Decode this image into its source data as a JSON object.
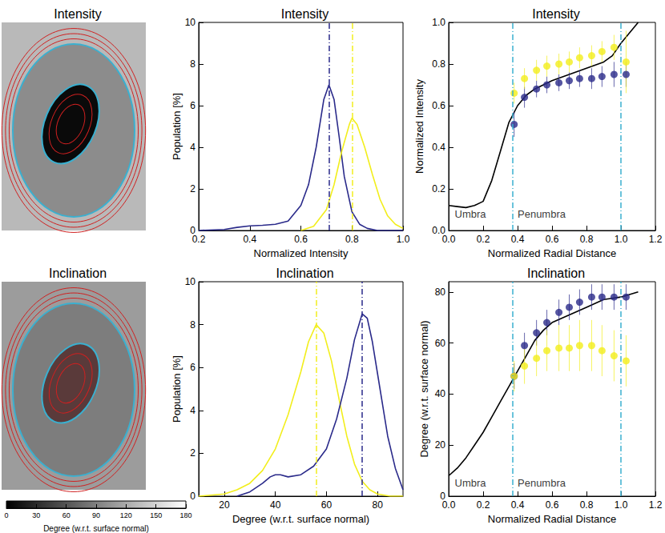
{
  "chart_data": [
    {
      "type": "image",
      "title": "Intensity"
    },
    {
      "type": "line",
      "title": "Intensity",
      "x_label": "Normalized Intensity",
      "y_label": "Population [%]",
      "xlim": [
        0.2,
        1.0
      ],
      "ylim": [
        0,
        10
      ],
      "xticks": [
        0.2,
        0.4,
        0.6,
        0.8,
        {
          "value": 1,
          "label": "1.0"
        }
      ],
      "yticks": [
        0,
        2,
        4,
        6,
        8,
        10
      ],
      "series": [
        {
          "color": "#2a2a8a",
          "values": [
            [
              0.2,
              0
            ],
            [
              0.3,
              0.05
            ],
            [
              0.35,
              0.15
            ],
            [
              0.4,
              0.22
            ],
            [
              0.45,
              0.25
            ],
            [
              0.5,
              0.3
            ],
            [
              0.55,
              0.45
            ],
            [
              0.6,
              1.2
            ],
            [
              0.63,
              2.2
            ],
            [
              0.66,
              4.0
            ],
            [
              0.69,
              6.3
            ],
            [
              0.71,
              7.0
            ],
            [
              0.73,
              6.3
            ],
            [
              0.75,
              4.5
            ],
            [
              0.77,
              2.6
            ],
            [
              0.8,
              0.9
            ],
            [
              0.83,
              0.3
            ],
            [
              0.86,
              0.1
            ],
            [
              0.9,
              0
            ],
            [
              1.0,
              0
            ]
          ]
        },
        {
          "color": "#f2ee1c",
          "values": [
            [
              0.6,
              0
            ],
            [
              0.65,
              0.2
            ],
            [
              0.7,
              1.0
            ],
            [
              0.73,
              2.2
            ],
            [
              0.76,
              3.8
            ],
            [
              0.79,
              5.1
            ],
            [
              0.8,
              5.4
            ],
            [
              0.82,
              5.1
            ],
            [
              0.85,
              4.0
            ],
            [
              0.88,
              2.7
            ],
            [
              0.91,
              1.5
            ],
            [
              0.94,
              0.7
            ],
            [
              0.97,
              0.3
            ],
            [
              1.0,
              0.1
            ]
          ]
        }
      ],
      "vlines": [
        {
          "x": 0.71,
          "color": "#2a2a8a"
        },
        {
          "x": 0.8,
          "color": "#f2ee1c"
        }
      ]
    },
    {
      "type": "scatter",
      "title": "Intensity",
      "x_label": "Normalized Radial Distance",
      "y_label": "Normalized Intensity",
      "xlim": [
        0,
        1.2
      ],
      "ylim": [
        0,
        1.0
      ],
      "xticks": [
        {
          "value": 0,
          "label": "0.0"
        },
        0.2,
        0.4,
        0.6,
        0.8,
        {
          "value": 1,
          "label": "1.0"
        },
        1.2
      ],
      "yticks": [
        {
          "value": 0,
          "label": "0.0"
        },
        0.2,
        0.4,
        0.6,
        0.8,
        {
          "value": 1,
          "label": "1.0"
        }
      ],
      "series": [
        {
          "type": "line",
          "color": "#000000",
          "values": [
            [
              0,
              0.12
            ],
            [
              0.05,
              0.115
            ],
            [
              0.1,
              0.11
            ],
            [
              0.15,
              0.12
            ],
            [
              0.2,
              0.14
            ],
            [
              0.25,
              0.24
            ],
            [
              0.3,
              0.38
            ],
            [
              0.35,
              0.52
            ],
            [
              0.4,
              0.6
            ],
            [
              0.45,
              0.65
            ],
            [
              0.5,
              0.68
            ],
            [
              0.6,
              0.72
            ],
            [
              0.7,
              0.75
            ],
            [
              0.8,
              0.78
            ],
            [
              0.9,
              0.81
            ],
            [
              0.95,
              0.84
            ],
            [
              1.0,
              0.9
            ],
            [
              1.05,
              0.95
            ],
            [
              1.1,
              1.0
            ]
          ]
        },
        {
          "type": "scatter",
          "marker": "circle",
          "color": "#2a2a8a",
          "values": [
            [
              0.38,
              0.51
            ],
            [
              0.44,
              0.64
            ],
            [
              0.51,
              0.68
            ],
            [
              0.57,
              0.7
            ],
            [
              0.64,
              0.71
            ],
            [
              0.7,
              0.72
            ],
            [
              0.76,
              0.73
            ],
            [
              0.83,
              0.73
            ],
            [
              0.89,
              0.74
            ],
            [
              0.96,
              0.75
            ],
            [
              1.03,
              0.75
            ]
          ],
          "errors": [
            0.06,
            0.05,
            0.04,
            0.04,
            0.04,
            0.04,
            0.04,
            0.05,
            0.05,
            0.06,
            0.06
          ]
        },
        {
          "type": "scatter",
          "marker": "circle",
          "color": "#f2ee1c",
          "values": [
            [
              0.38,
              0.66
            ],
            [
              0.44,
              0.73
            ],
            [
              0.51,
              0.77
            ],
            [
              0.57,
              0.79
            ],
            [
              0.64,
              0.8
            ],
            [
              0.7,
              0.81
            ],
            [
              0.76,
              0.83
            ],
            [
              0.83,
              0.84
            ],
            [
              0.89,
              0.86
            ],
            [
              0.96,
              0.88
            ],
            [
              1.03,
              0.81
            ]
          ],
          "errors": [
            0.05,
            0.05,
            0.05,
            0.05,
            0.05,
            0.05,
            0.05,
            0.05,
            0.05,
            0.06,
            0.15
          ]
        }
      ],
      "vlines": [
        {
          "x": 0.37,
          "color": "#3ab0d0"
        },
        {
          "x": 1.0,
          "color": "#3ab0d0"
        }
      ],
      "annotations": [
        {
          "text": "Umbra",
          "x": 0.035,
          "y": 0.077
        },
        {
          "text": "Penumbra",
          "x": 0.4,
          "y": 0.077
        }
      ]
    },
    {
      "type": "image",
      "title": "Inclination",
      "colorbar": {
        "range": [
          0,
          180
        ],
        "ticks": [
          0,
          30,
          60,
          90,
          120,
          150,
          180
        ],
        "label": "Degree (w.r.t. surface normal)"
      }
    },
    {
      "type": "line",
      "title": "Inclination",
      "x_label": "Degree (w.r.t. surface normal)",
      "y_label": "Population [%]",
      "xlim": [
        10,
        90
      ],
      "ylim": [
        0,
        10
      ],
      "xticks": [
        20,
        40,
        60,
        80
      ],
      "yticks": [
        0,
        2,
        4,
        6,
        8,
        10
      ],
      "series": [
        {
          "color": "#f2ee1c",
          "values": [
            [
              10,
              0
            ],
            [
              20,
              0.1
            ],
            [
              25,
              0.3
            ],
            [
              30,
              0.6
            ],
            [
              35,
              1.2
            ],
            [
              40,
              2.2
            ],
            [
              45,
              3.8
            ],
            [
              50,
              5.8
            ],
            [
              53,
              7.2
            ],
            [
              56,
              8.0
            ],
            [
              59,
              7.6
            ],
            [
              62,
              6.3
            ],
            [
              65,
              4.5
            ],
            [
              68,
              2.8
            ],
            [
              71,
              1.5
            ],
            [
              74,
              0.7
            ],
            [
              77,
              0.3
            ],
            [
              80,
              0.1
            ],
            [
              85,
              0
            ],
            [
              90,
              0
            ]
          ]
        },
        {
          "color": "#2a2a8a",
          "values": [
            [
              25,
              0
            ],
            [
              30,
              0.2
            ],
            [
              35,
              0.6
            ],
            [
              38,
              0.9
            ],
            [
              40,
              1.0
            ],
            [
              42,
              1.0
            ],
            [
              45,
              0.9
            ],
            [
              50,
              1.0
            ],
            [
              55,
              1.4
            ],
            [
              60,
              2.2
            ],
            [
              64,
              3.6
            ],
            [
              68,
              5.5
            ],
            [
              71,
              7.3
            ],
            [
              74,
              8.5
            ],
            [
              76,
              8.3
            ],
            [
              78,
              7.2
            ],
            [
              81,
              5.0
            ],
            [
              84,
              2.8
            ],
            [
              87,
              1.3
            ],
            [
              90,
              0.3
            ]
          ]
        }
      ],
      "vlines": [
        {
          "x": 56,
          "color": "#f2ee1c"
        },
        {
          "x": 74,
          "color": "#2a2a8a"
        }
      ]
    },
    {
      "type": "scatter",
      "title": "Inclination",
      "x_label": "Normalized Radial Distance",
      "y_label": "Degree (w.r.t. surface normal)",
      "xlim": [
        0,
        1.2
      ],
      "ylim": [
        0,
        84
      ],
      "xticks": [
        {
          "value": 0,
          "label": "0.0"
        },
        0.2,
        0.4,
        0.6,
        0.8,
        {
          "value": 1,
          "label": "1.0"
        },
        1.2
      ],
      "yticks": [
        0,
        20,
        40,
        60,
        80
      ],
      "series": [
        {
          "type": "line",
          "color": "#000000",
          "values": [
            [
              0,
              8
            ],
            [
              0.05,
              11
            ],
            [
              0.1,
              15
            ],
            [
              0.15,
              20
            ],
            [
              0.2,
              25
            ],
            [
              0.25,
              31
            ],
            [
              0.3,
              37
            ],
            [
              0.35,
              43
            ],
            [
              0.4,
              49
            ],
            [
              0.45,
              55
            ],
            [
              0.5,
              61
            ],
            [
              0.55,
              65
            ],
            [
              0.6,
              68
            ],
            [
              0.7,
              71
            ],
            [
              0.8,
              74
            ],
            [
              0.9,
              77
            ],
            [
              1.0,
              78
            ],
            [
              1.1,
              80
            ]
          ]
        },
        {
          "type": "scatter",
          "marker": "circle",
          "color": "#2a2a8a",
          "values": [
            [
              0.38,
              47
            ],
            [
              0.44,
              59
            ],
            [
              0.51,
              64
            ],
            [
              0.57,
              68
            ],
            [
              0.64,
              72
            ],
            [
              0.7,
              74
            ],
            [
              0.76,
              76
            ],
            [
              0.83,
              78
            ],
            [
              0.89,
              78
            ],
            [
              0.96,
              78
            ],
            [
              1.03,
              78
            ]
          ],
          "errors": [
            5,
            5,
            5,
            5,
            5,
            5,
            5,
            5,
            5,
            5,
            5
          ]
        },
        {
          "type": "scatter",
          "marker": "circle",
          "color": "#f2ee1c",
          "values": [
            [
              0.38,
              47
            ],
            [
              0.44,
              51
            ],
            [
              0.51,
              54
            ],
            [
              0.57,
              57
            ],
            [
              0.64,
              58
            ],
            [
              0.7,
              58
            ],
            [
              0.76,
              59
            ],
            [
              0.83,
              59
            ],
            [
              0.89,
              57
            ],
            [
              0.96,
              55
            ],
            [
              1.03,
              53
            ]
          ],
          "errors": [
            6,
            7,
            7,
            8,
            9,
            9,
            10,
            10,
            10,
            10,
            10
          ]
        }
      ],
      "vlines": [
        {
          "x": 0.37,
          "color": "#3ab0d0"
        },
        {
          "x": 1.0,
          "color": "#3ab0d0"
        }
      ],
      "annotations": [
        {
          "text": "Umbra",
          "x": 0.035,
          "y": 5.3
        },
        {
          "text": "Penumbra",
          "x": 0.4,
          "y": 5.3
        }
      ]
    }
  ]
}
